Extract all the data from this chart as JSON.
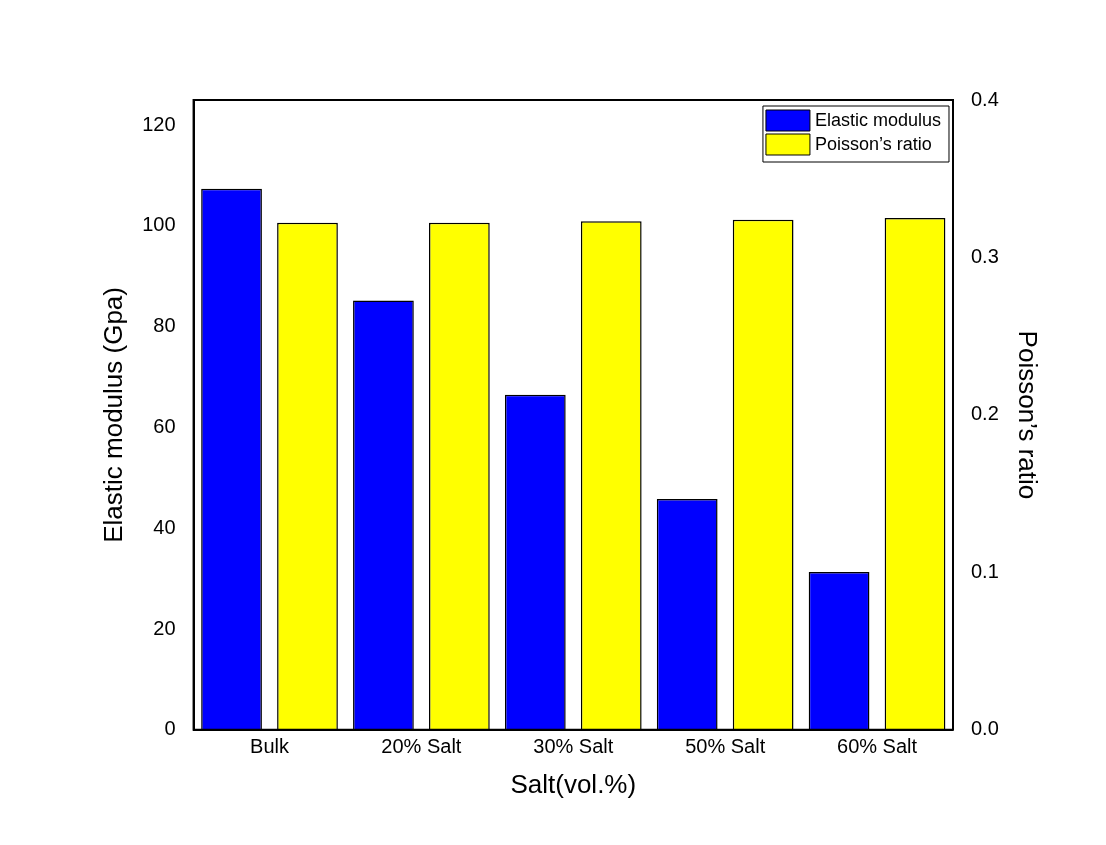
{
  "chart_data": {
    "type": "bar",
    "xlabel": "Salt(vol.%)",
    "ylabel": "Elastic modulus (Gpa)",
    "y2label": "Poisson’s ratio",
    "categories": [
      "Bulk",
      "20% Salt",
      "30% Salt",
      "50% Salt",
      "60% Salt"
    ],
    "series": [
      {
        "name": "Elastic modulus",
        "color": "#0000ff",
        "values": [
          107.4,
          85.2,
          66.5,
          45.8,
          31.3
        ]
      },
      {
        "name": "Poisson’s ratio",
        "color": "#ffff00",
        "axis": "y2",
        "values": [
          0.322,
          0.322,
          0.323,
          0.324,
          0.325
        ]
      }
    ],
    "ylim": [
      0,
      125
    ],
    "yticks": [
      0,
      20,
      40,
      60,
      80,
      100,
      120
    ],
    "y2lim": [
      0,
      0.4
    ],
    "y2ticks": [
      {
        "value": 0,
        "label": "0.0"
      },
      0.1,
      0.2,
      0.3,
      0.4
    ],
    "legend": "top right",
    "grid": false
  }
}
